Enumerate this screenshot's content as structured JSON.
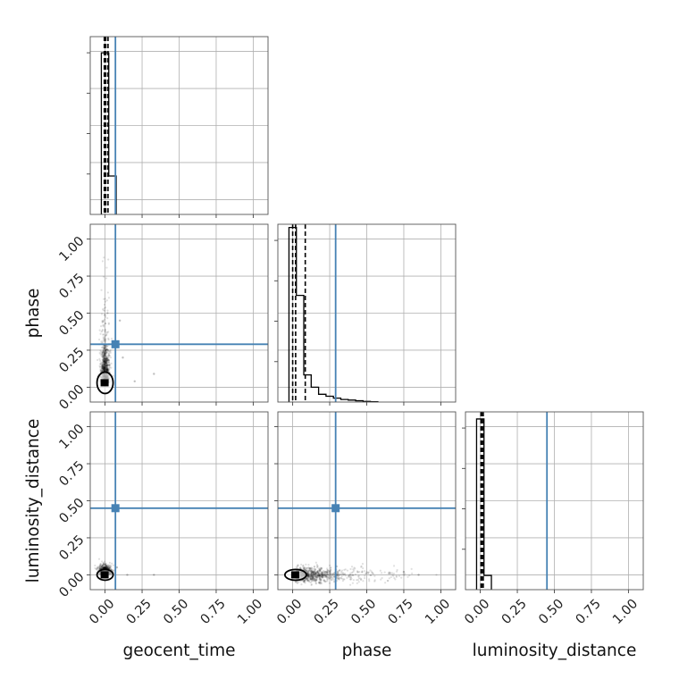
{
  "chart_data": {
    "type": "corner",
    "parameters": [
      "geocent_time",
      "phase",
      "luminosity_distance"
    ],
    "axis_range": [
      -0.1,
      1.1
    ],
    "tick_labels": [
      "0.00",
      "0.25",
      "0.50",
      "0.75",
      "1.00"
    ],
    "tick_values": [
      0,
      0.25,
      0.5,
      0.75,
      1.0
    ],
    "grid": true,
    "truth_color": "#4682b4",
    "hist_color": "#000000",
    "injection": {
      "geocent_time": 0.07,
      "phase": 0.29,
      "luminosity_distance": 0.45
    },
    "histograms": [
      {
        "parameter": "geocent_time",
        "edges": [
          -0.025,
          0.025,
          0.075
        ],
        "counts": [
          40,
          9.5
        ],
        "ymax": 44,
        "quantiles": [
          -0.005,
          0.005,
          0.02
        ]
      },
      {
        "parameter": "phase",
        "edges": [
          -0.025,
          0.025,
          0.075,
          0.125,
          0.175,
          0.225,
          0.275,
          0.325,
          0.375,
          0.425,
          0.475,
          0.525,
          0.575
        ],
        "counts": [
          27,
          16.5,
          4.2,
          2.3,
          1.2,
          0.9,
          0.6,
          0.4,
          0.3,
          0.2,
          0.1,
          0.05
        ],
        "ymax": 27.5,
        "quantiles": [
          0.0,
          0.02,
          0.085
        ]
      },
      {
        "parameter": "luminosity_distance",
        "edges": [
          -0.025,
          0.025,
          0.075
        ],
        "counts": [
          36,
          3
        ],
        "ymax": 37.5,
        "quantiles": [
          0.005,
          0.01,
          0.02
        ]
      }
    ],
    "scatter": [
      {
        "x_param": "geocent_time",
        "y_param": "phase",
        "x_center": 0.0,
        "x_spread": 0.025,
        "y_center": 0.03,
        "y_spread": 0.2,
        "outliers": [
          [
            0.33,
            0.09
          ],
          [
            0.2,
            0.04
          ],
          [
            0.1,
            0.45
          ],
          [
            0.12,
            0.2
          ]
        ]
      },
      {
        "x_param": "geocent_time",
        "y_param": "luminosity_distance",
        "x_center": 0.0,
        "x_spread": 0.02,
        "y_center": 0.0,
        "y_spread": 0.03,
        "outliers": [
          [
            0.33,
            0.0
          ],
          [
            0.15,
            0.0
          ],
          [
            0.08,
            0.05
          ]
        ]
      },
      {
        "x_param": "phase",
        "y_param": "luminosity_distance",
        "x_center": 0.02,
        "x_spread": 0.35,
        "y_center": 0.0,
        "y_spread": 0.025,
        "outliers": [
          [
            0.85,
            0.0
          ],
          [
            0.75,
            0.02
          ],
          [
            0.65,
            0.01
          ]
        ]
      }
    ]
  }
}
